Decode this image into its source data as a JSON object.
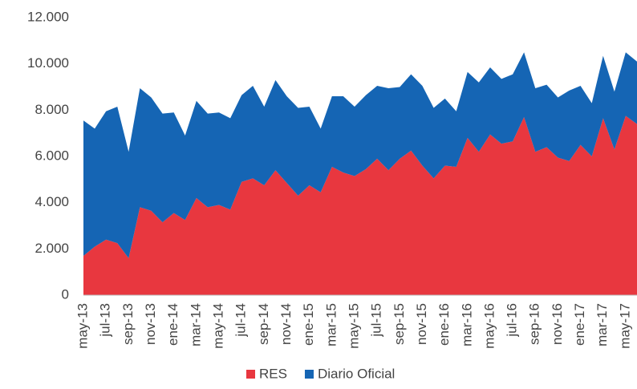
{
  "chart_data": {
    "type": "stacked_area",
    "categories": [
      "may-13",
      null,
      "jul-13",
      null,
      "sep-13",
      null,
      "nov-13",
      null,
      "ene-14",
      null,
      "mar-14",
      null,
      "may-14",
      null,
      "jul-14",
      null,
      "sep-14",
      null,
      "nov-14",
      null,
      "ene-15",
      null,
      "mar-15",
      null,
      "may-15",
      null,
      "jul-15",
      null,
      "sep-15",
      null,
      "nov-15",
      null,
      "ene-16",
      null,
      "mar-16",
      null,
      "may-16",
      null,
      "jul-16",
      null,
      "sep-16",
      null,
      "nov-16",
      null,
      "ene-17",
      null,
      "mar-17",
      null,
      "may-17",
      null
    ],
    "series": [
      {
        "name": "RES",
        "color": "#e8373f",
        "values": [
          1700,
          2100,
          2400,
          2250,
          1600,
          3800,
          3650,
          3150,
          3550,
          3250,
          4200,
          3800,
          3900,
          3700,
          4900,
          5050,
          4750,
          5400,
          4850,
          4300,
          4750,
          4450,
          5550,
          5300,
          5150,
          5450,
          5900,
          5400,
          5900,
          6250,
          5600,
          5050,
          5600,
          5550,
          6800,
          6200,
          6950,
          6550,
          6650,
          7700,
          6200,
          6400,
          5950,
          5800,
          6500,
          6000,
          7650,
          6300,
          7750,
          7400
        ]
      },
      {
        "name": "Diario Oficial",
        "color": "#1565b4",
        "values": [
          5850,
          5100,
          5550,
          5900,
          4600,
          5150,
          4900,
          4700,
          4350,
          3650,
          4200,
          4050,
          4000,
          3950,
          3750,
          4000,
          3400,
          3900,
          3750,
          3800,
          3400,
          2750,
          3050,
          3300,
          3000,
          3200,
          3150,
          3550,
          3100,
          3300,
          3450,
          3050,
          2900,
          2400,
          2850,
          3000,
          2900,
          2800,
          2900,
          2800,
          2750,
          2700,
          2600,
          3050,
          2550,
          2300,
          2700,
          2500,
          2750,
          2700
        ]
      }
    ],
    "ylim": [
      0,
      12000
    ],
    "yticks": [
      0,
      {
        "value": 2000,
        "label": "2.000"
      },
      {
        "value": 4000,
        "label": "4.000"
      },
      {
        "value": 6000,
        "label": "6.000"
      },
      {
        "value": 8000,
        "label": "8.000"
      },
      {
        "value": 10000,
        "label": "10.000"
      },
      {
        "value": 12000,
        "label": "12.000"
      }
    ],
    "legend": "bottom"
  }
}
